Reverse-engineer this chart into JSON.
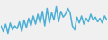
{
  "values": [
    55,
    45,
    58,
    42,
    60,
    48,
    55,
    50,
    62,
    45,
    65,
    52,
    68,
    55,
    72,
    58,
    75,
    60,
    80,
    55,
    85,
    60,
    78,
    65,
    88,
    62,
    80,
    70,
    75,
    85,
    78,
    55,
    48,
    70,
    60,
    72,
    58,
    68,
    62,
    75,
    65,
    70,
    62,
    68,
    60,
    72,
    65
  ],
  "line_color": "#4bafd6",
  "bg_color": "#f0f0f0",
  "linewidth": 1.1
}
